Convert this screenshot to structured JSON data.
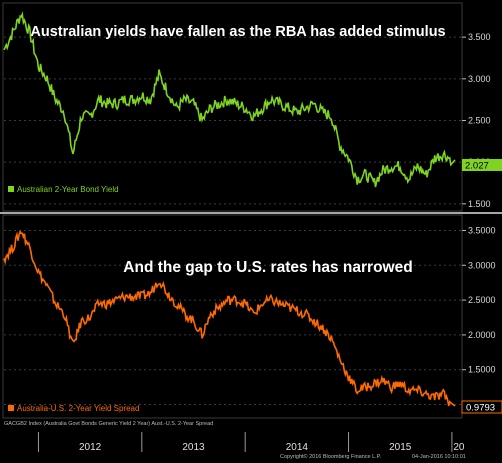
{
  "chart_data": [
    {
      "type": "line",
      "title": "Australian yields have fallen as the RBA has added stimulus",
      "series": [
        {
          "name": "Australian 2-Year Bond Yield",
          "color": "#7fd321",
          "last_value_label": "2.027",
          "x": [
            "2011-09",
            "2011-10",
            "2011-11",
            "2011-12",
            "2012-01",
            "2012-02",
            "2012-03",
            "2012-04",
            "2012-05",
            "2012-06",
            "2012-07",
            "2012-08",
            "2012-09",
            "2012-10",
            "2012-11",
            "2012-12",
            "2013-01",
            "2013-02",
            "2013-03",
            "2013-04",
            "2013-05",
            "2013-06",
            "2013-07",
            "2013-08",
            "2013-09",
            "2013-10",
            "2013-11",
            "2013-12",
            "2014-01",
            "2014-02",
            "2014-03",
            "2014-04",
            "2014-05",
            "2014-06",
            "2014-07",
            "2014-08",
            "2014-09",
            "2014-10",
            "2014-11",
            "2014-12",
            "2015-01",
            "2015-02",
            "2015-03",
            "2015-04",
            "2015-05",
            "2015-06",
            "2015-07",
            "2015-08",
            "2015-09",
            "2015-10",
            "2015-11",
            "2015-12",
            "2016-01"
          ],
          "y": [
            3.35,
            3.55,
            3.78,
            3.55,
            3.15,
            3.0,
            2.75,
            2.6,
            2.1,
            2.55,
            2.55,
            2.75,
            2.7,
            2.7,
            2.75,
            2.75,
            2.8,
            2.75,
            3.05,
            2.85,
            2.65,
            2.75,
            2.7,
            2.5,
            2.65,
            2.7,
            2.75,
            2.7,
            2.65,
            2.55,
            2.65,
            2.75,
            2.7,
            2.65,
            2.6,
            2.65,
            2.7,
            2.6,
            2.55,
            2.2,
            2.05,
            1.8,
            1.85,
            1.75,
            1.9,
            1.95,
            1.95,
            1.8,
            1.95,
            1.85,
            2.05,
            2.1,
            2.027
          ]
        }
      ],
      "y_ticks": [
        "3.500",
        "3.000",
        "2.500",
        "2.000",
        "1.500"
      ],
      "ylim": [
        1.45,
        3.85
      ]
    },
    {
      "type": "line",
      "title": "And the gap to U.S. rates has narrowed",
      "series": [
        {
          "name": "Australia-U.S. 2-Year Yield Spread",
          "color": "#ff6a00",
          "last_value_label": "0.9793",
          "x": [
            "2011-09",
            "2011-10",
            "2011-11",
            "2011-12",
            "2012-01",
            "2012-02",
            "2012-03",
            "2012-04",
            "2012-05",
            "2012-06",
            "2012-07",
            "2012-08",
            "2012-09",
            "2012-10",
            "2012-11",
            "2012-12",
            "2013-01",
            "2013-02",
            "2013-03",
            "2013-04",
            "2013-05",
            "2013-06",
            "2013-07",
            "2013-08",
            "2013-09",
            "2013-10",
            "2013-11",
            "2013-12",
            "2014-01",
            "2014-02",
            "2014-03",
            "2014-04",
            "2014-05",
            "2014-06",
            "2014-07",
            "2014-08",
            "2014-09",
            "2014-10",
            "2014-11",
            "2014-12",
            "2015-01",
            "2015-02",
            "2015-03",
            "2015-04",
            "2015-05",
            "2015-06",
            "2015-07",
            "2015-08",
            "2015-09",
            "2015-10",
            "2015-11",
            "2015-12",
            "2016-01"
          ],
          "y": [
            3.1,
            3.25,
            3.5,
            3.25,
            2.9,
            2.7,
            2.45,
            2.3,
            1.85,
            2.2,
            2.25,
            2.45,
            2.45,
            2.5,
            2.55,
            2.55,
            2.55,
            2.6,
            2.8,
            2.6,
            2.45,
            2.3,
            2.2,
            2.0,
            2.3,
            2.4,
            2.5,
            2.5,
            2.45,
            2.3,
            2.45,
            2.5,
            2.45,
            2.4,
            2.35,
            2.3,
            2.2,
            2.1,
            1.95,
            1.65,
            1.4,
            1.2,
            1.25,
            1.3,
            1.35,
            1.25,
            1.3,
            1.2,
            1.2,
            1.15,
            1.1,
            1.15,
            0.9793
          ]
        }
      ],
      "y_ticks": [
        "3.5000",
        "3.0000",
        "2.5000",
        "2.0000",
        "1.5000",
        "1.0000"
      ],
      "ylim": [
        0.85,
        3.65
      ]
    }
  ],
  "x_axis": {
    "years": [
      "2012",
      "2013",
      "2014",
      "2015",
      "20"
    ]
  },
  "footer": {
    "left": "GACGB2 Index (Australia Govt Bonds Generic Yield 2 Year) Aust.-U.S. 2-Year Spread",
    "right_copyright": "Copyright© 2016 Bloomberg Finance L.P.",
    "right_date": "04-Jan-2016 10:10:01"
  }
}
